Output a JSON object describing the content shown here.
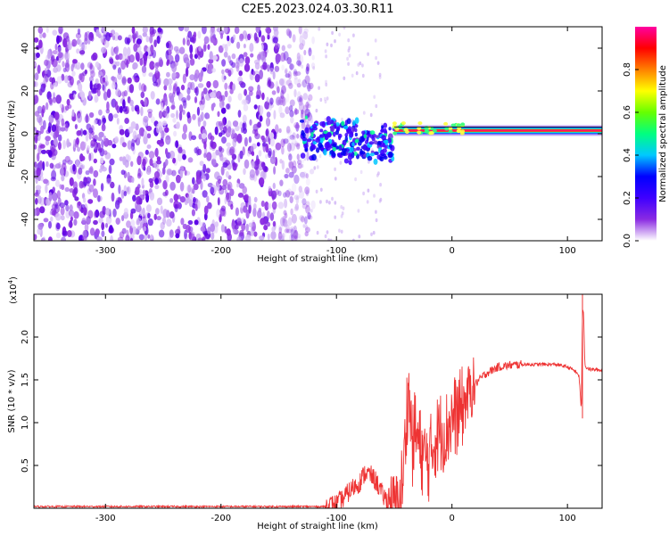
{
  "title": "C2E5.2023.024.03.30.R11",
  "chart_data": [
    {
      "type": "heatmap",
      "name": "spectrogram",
      "xlabel": "Height of straight line (km)",
      "ylabel": "Frequency (Hz)",
      "xlim": [
        -362,
        130
      ],
      "ylim": [
        -50,
        50
      ],
      "xticks": [
        -300,
        -200,
        -100,
        0,
        100
      ],
      "yticks": [
        -40,
        -20,
        0,
        20,
        40
      ],
      "colorbar": {
        "label": "Normalized spectral amplitude",
        "range": [
          0.0,
          1.0
        ],
        "ticks": [
          "0.0",
          "0.2",
          "0.4",
          "0.6",
          "0.8"
        ],
        "colormap": [
          "#ffffff",
          "#8a2be2",
          "#3f00ff",
          "#0000ff",
          "#00c8ff",
          "#00ff80",
          "#66ff00",
          "#ffff00",
          "#ff8000",
          "#ff0000",
          "#ff00a0"
        ]
      },
      "features": {
        "noise_region_x": [
          -362,
          -130
        ],
        "transition_x": [
          -130,
          -50
        ],
        "line_start_x": -50,
        "line_frequency_hz": 1.5
      }
    },
    {
      "type": "line",
      "name": "snr",
      "xlabel": "Height of straight line (km)",
      "ylabel": "SNR (10 * v/v)",
      "y_multiplier": "(x10",
      "y_multiplier_exp": "4",
      "y_multiplier_close": ")",
      "xlim": [
        -362,
        130
      ],
      "ylim": [
        0,
        2.5
      ],
      "xticks": [
        -300,
        -200,
        -100,
        0,
        100
      ],
      "yticks": [
        "0.5",
        "1.0",
        "1.5",
        "2.0"
      ],
      "color": "#ee3333",
      "series": [
        {
          "x": [
            -362,
            -300,
            -200,
            -110,
            -100,
            -95,
            -90,
            -85,
            -80,
            -75,
            -70,
            -65,
            -60,
            -55,
            -50,
            -45,
            -42,
            -40,
            -38,
            -36,
            -34,
            -32,
            -30,
            -25,
            -20,
            -15,
            -10,
            -5,
            0,
            5,
            10,
            15,
            20,
            25,
            30,
            40,
            50,
            60,
            70,
            80,
            90,
            100,
            105,
            108,
            110,
            112,
            113,
            114,
            115,
            116,
            118,
            120,
            125,
            130
          ],
          "y": [
            0.02,
            0.02,
            0.02,
            0.02,
            0.05,
            0.1,
            0.18,
            0.25,
            0.3,
            0.42,
            0.38,
            0.3,
            0.15,
            0.08,
            0.06,
            0.1,
            0.4,
            0.9,
            1.4,
            1.1,
            0.7,
            0.95,
            0.8,
            0.6,
            0.55,
            0.8,
            0.9,
            0.9,
            1.05,
            1.1,
            1.2,
            1.35,
            1.45,
            1.52,
            1.58,
            1.65,
            1.67,
            1.68,
            1.68,
            1.68,
            1.68,
            1.65,
            1.62,
            1.58,
            1.55,
            1.15,
            2.3,
            2.3,
            1.7,
            1.65,
            1.63,
            1.62,
            1.62,
            1.61
          ]
        }
      ]
    }
  ]
}
